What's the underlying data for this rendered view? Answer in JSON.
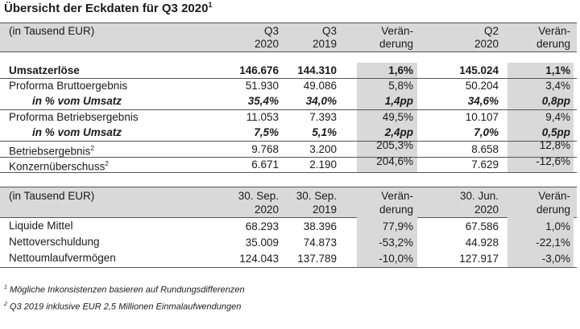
{
  "title": "Übersicht der Eckdaten für Q3 2020",
  "title_sup": "1",
  "table1": {
    "header": {
      "label": "(in Tausend EUR)",
      "cols": [
        {
          "l1": "Q3",
          "l2": "2020"
        },
        {
          "l1": "Q3",
          "l2": "2019"
        },
        {
          "l1": "Verän-",
          "l2": "derung"
        },
        {
          "l1": "Q2",
          "l2": "2020"
        },
        {
          "l1": "Verän-",
          "l2": "derung"
        }
      ]
    },
    "rows": [
      {
        "label": "Umsatzerlöse",
        "sup": "",
        "vals": [
          "146.676",
          "144.310",
          "1,6%",
          "145.024",
          "1,1%"
        ]
      },
      {
        "label": "Proforma Bruttoergebnis",
        "sup": "",
        "vals": [
          "51.930",
          "49.086",
          "5,8%",
          "50.204",
          "3,4%"
        ]
      },
      {
        "label": "in % vom Umsatz",
        "sup": "",
        "vals": [
          "35,4%",
          "34,0%",
          "1,4pp",
          "34,6%",
          "0,8pp"
        ]
      },
      {
        "label": "Proforma Betriebsergebnis",
        "sup": "",
        "vals": [
          "11.053",
          "7.393",
          "49,5%",
          "10.107",
          "9,4%"
        ]
      },
      {
        "label": "in % vom Umsatz",
        "sup": "",
        "vals": [
          "7,5%",
          "5,1%",
          "2,4pp",
          "7,0%",
          "0,5pp"
        ]
      },
      {
        "label": "Betriebsergebnis",
        "sup": "2",
        "vals": [
          "9.768",
          "3.200",
          "205,3%",
          "8.658",
          "12,8%"
        ]
      },
      {
        "label": "Konzernüberschuss",
        "sup": "2",
        "vals": [
          "6.671",
          "2.190",
          "204,6%",
          "7.629",
          "-12,6%"
        ]
      }
    ]
  },
  "table2": {
    "header": {
      "label": "(in Tausend EUR)",
      "cols": [
        {
          "l1": "30. Sep.",
          "l2": "2020"
        },
        {
          "l1": "30. Sep.",
          "l2": "2019"
        },
        {
          "l1": "Verän-",
          "l2": "derung"
        },
        {
          "l1": "30. Jun.",
          "l2": "2020"
        },
        {
          "l1": "Verän-",
          "l2": "derung"
        }
      ]
    },
    "rows": [
      {
        "label": "Liquide Mittel",
        "vals": [
          "68.293",
          "38.396",
          "77,9%",
          "67.586",
          "1,0%"
        ]
      },
      {
        "label": "Nettoverschuldung",
        "vals": [
          "35.009",
          "74.873",
          "-53,2%",
          "44.928",
          "-22,1%"
        ]
      },
      {
        "label": "Nettoumlaufvermögen",
        "vals": [
          "124.043",
          "137.789",
          "-10,0%",
          "127.917",
          "-3,0%"
        ]
      }
    ]
  },
  "footnotes": [
    {
      "sup": "1",
      "text": "Mögliche Inkonsistenzen basieren auf Rundungsdifferenzen"
    },
    {
      "sup": "2",
      "text": "Q3 2019 inklusive EUR 2,5 Millionen Einmalaufwendungen"
    }
  ]
}
